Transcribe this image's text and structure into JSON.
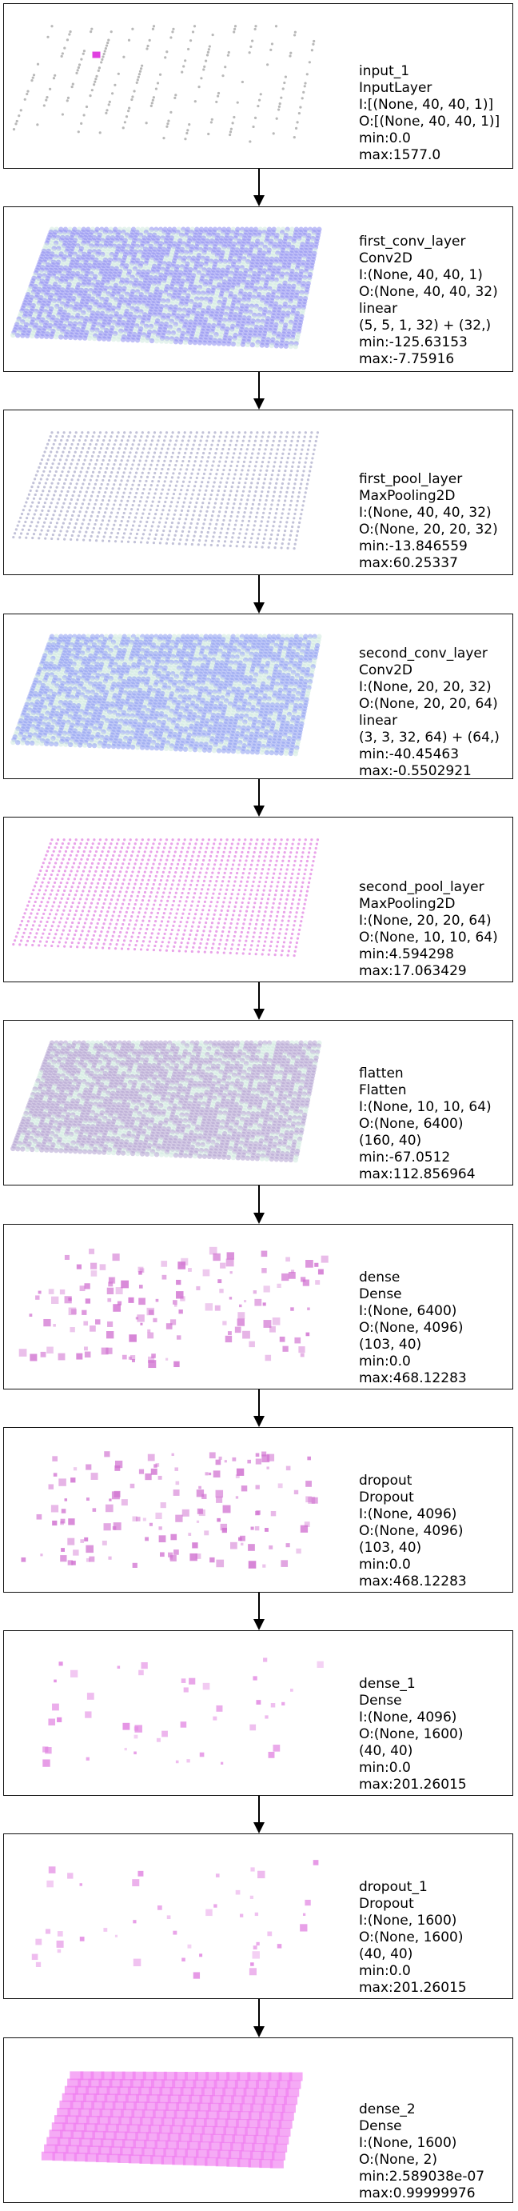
{
  "layers": [
    {
      "lines": [
        "input_1",
        "InputLayer",
        "I:[(None, 40, 40, 1)]",
        "O:[(None, 40, 40, 1)]",
        "min:0.0",
        "max:1577.0"
      ],
      "viz": "sparse-grid",
      "color": "#9a9a9a"
    },
    {
      "lines": [
        "first_conv_layer",
        "Conv2D",
        "I:(None, 40, 40, 1)",
        "O:(None, 40, 40, 32)",
        "linear",
        "(5, 5, 1, 32) + (32,)",
        "min:-125.63153",
        "max:-7.75916"
      ],
      "viz": "dense-grid",
      "color": "#8c8cf0"
    },
    {
      "lines": [
        "first_pool_layer",
        "MaxPooling2D",
        "I:(None, 40, 40, 32)",
        "O:(None, 20, 20, 32)",
        "min:-13.846559",
        "max:60.25337"
      ],
      "viz": "grid",
      "color": "#a8a8c8"
    },
    {
      "lines": [
        "second_conv_layer",
        "Conv2D",
        "I:(None, 20, 20, 32)",
        "O:(None, 20, 20, 64)",
        "linear",
        "(3, 3, 32, 64) + (64,)",
        "min:-40.45463",
        "max:-0.5502921"
      ],
      "viz": "dense-grid",
      "color": "#8c9cf0"
    },
    {
      "lines": [
        "second_pool_layer",
        "MaxPooling2D",
        "I:(None, 20, 20, 64)",
        "O:(None, 10, 10, 64)",
        "min:4.594298",
        "max:17.063429"
      ],
      "viz": "grid",
      "color": "#e07ce0"
    },
    {
      "lines": [
        "flatten",
        "Flatten",
        "I:(None, 10, 10, 64)",
        "O:(None, 6400)",
        "(160, 40)",
        "min:-67.0512",
        "max:112.856964"
      ],
      "viz": "dense-grid",
      "color": "#b0a0d0"
    },
    {
      "lines": [
        "dense",
        "Dense",
        "I:(None, 6400)",
        "O:(None, 4096)",
        "(103, 40)",
        "min:0.0",
        "max:468.12283"
      ],
      "viz": "scatter",
      "color": "#d070d0"
    },
    {
      "lines": [
        "dropout",
        "Dropout",
        "I:(None, 4096)",
        "O:(None, 4096)",
        "(103, 40)",
        "min:0.0",
        "max:468.12283"
      ],
      "viz": "scatter",
      "color": "#d070d0"
    },
    {
      "lines": [
        "dense_1",
        "Dense",
        "I:(None, 4096)",
        "O:(None, 1600)",
        "(40, 40)",
        "min:0.0",
        "max:201.26015"
      ],
      "viz": "scatter-sparse",
      "color": "#e080e0"
    },
    {
      "lines": [
        "dropout_1",
        "Dropout",
        "I:(None, 1600)",
        "O:(None, 1600)",
        "(40, 40)",
        "min:0.0",
        "max:201.26015"
      ],
      "viz": "scatter-sparse",
      "color": "#e080e0"
    },
    {
      "lines": [
        "dense_2",
        "Dense",
        "I:(None, 1600)",
        "O:(None, 2)",
        "min:2.589038e-07",
        "max:0.99999976"
      ],
      "viz": "solid",
      "color": "#f07cf0"
    }
  ]
}
